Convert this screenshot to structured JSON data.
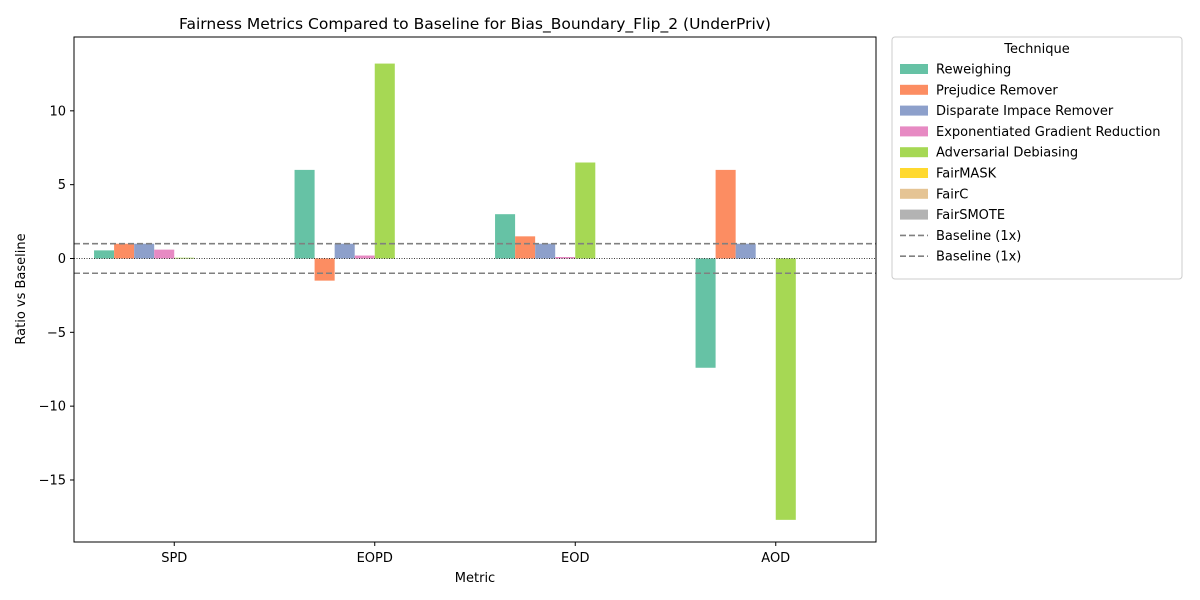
{
  "chart_data": {
    "type": "bar",
    "title": "Fairness Metrics Compared to Baseline for Bias_Boundary_Flip_2 (UnderPriv)",
    "xlabel": "Metric",
    "ylabel": "Ratio vs Baseline",
    "categories": [
      "SPD",
      "EOPD",
      "EOD",
      "AOD"
    ],
    "ylim": [
      -19.2,
      15.0
    ],
    "yticks": [
      -15,
      -10,
      -5,
      0,
      5,
      10
    ],
    "ytick_labels": [
      "−15",
      "−10",
      "−5",
      "0",
      "5",
      "10"
    ],
    "baselines": [
      1,
      -1
    ],
    "grid": false,
    "legend": {
      "title": "Technique",
      "position": "outside-right",
      "baseline_entries": [
        "Baseline (1x)",
        "Baseline (1x)"
      ]
    },
    "series": [
      {
        "name": "Reweighing",
        "color": "#66c2a5",
        "values": [
          0.55,
          6.0,
          3.0,
          -7.4
        ]
      },
      {
        "name": "Prejudice Remover",
        "color": "#fc8d62",
        "values": [
          1.0,
          -1.5,
          1.5,
          6.0
        ]
      },
      {
        "name": "Disparate Impace Remover",
        "color": "#8da0cb",
        "values": [
          1.0,
          1.0,
          1.0,
          1.0
        ]
      },
      {
        "name": "Exponentiated Gradient Reduction",
        "color": "#e78ac3",
        "values": [
          0.6,
          0.2,
          0.1,
          0.0
        ]
      },
      {
        "name": "Adversarial Debiasing",
        "color": "#a6d854",
        "values": [
          0.05,
          13.2,
          6.5,
          -17.7
        ]
      },
      {
        "name": "FairMASK",
        "color": "#ffd92f",
        "values": [
          0,
          0,
          0,
          0
        ]
      },
      {
        "name": "FairC",
        "color": "#e5c494",
        "values": [
          0,
          0,
          0,
          0
        ]
      },
      {
        "name": "FairSMOTE",
        "color": "#b3b3b3",
        "values": [
          0,
          0,
          0,
          0
        ]
      }
    ]
  }
}
